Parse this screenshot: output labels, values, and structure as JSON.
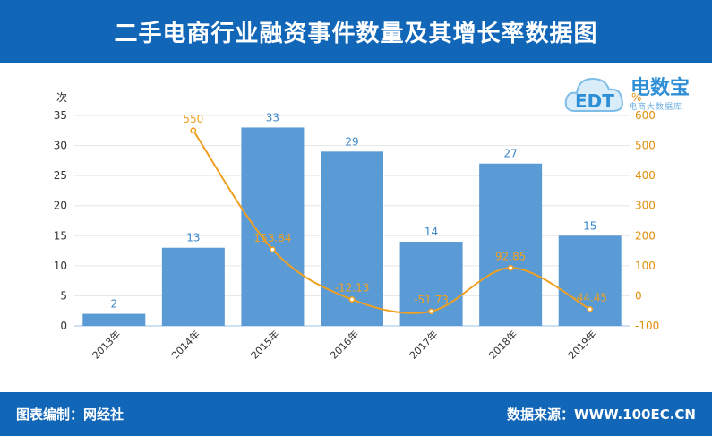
{
  "header": {
    "title": "二手电商行业融资事件数量及其增长率数据图"
  },
  "footer": {
    "left": "图表编制：网经社",
    "right": "数据来源：WWW.100EC.CN"
  },
  "logo": {
    "main": "电数宝",
    "sub": "电商大数据库",
    "mark": "EDT"
  },
  "colors": {
    "header": "#1166b8",
    "bar": "#5b9bd5",
    "line": "#f0a020",
    "right_axis": "#e08e0b"
  },
  "chart_data": {
    "type": "bar",
    "categories": [
      "2013年",
      "2014年",
      "2015年",
      "2016年",
      "2017年",
      "2018年",
      "2019年"
    ],
    "series": [
      {
        "values": [
          2,
          13,
          33,
          29,
          14,
          27,
          15
        ],
        "axis": "left",
        "kind": "bar"
      },
      {
        "values": [
          null,
          550,
          153.84,
          -12.13,
          -51.73,
          92.85,
          -44.45
        ],
        "axis": "right",
        "kind": "line"
      }
    ],
    "ylabel": "次",
    "y2label": "%",
    "ylim": [
      0,
      35
    ],
    "y2lim": [
      -100,
      600
    ],
    "yticks": [
      0,
      5,
      10,
      15,
      20,
      25,
      30,
      35
    ],
    "y2ticks": [
      -100,
      0,
      100,
      200,
      300,
      400,
      500,
      600
    ],
    "bar_labels": [
      "2",
      "13",
      "33",
      "29",
      "14",
      "27",
      "15"
    ],
    "line_labels": [
      "",
      "550",
      "153.84",
      "-12.13",
      "-51.73",
      "92.85",
      "-44.45"
    ],
    "grid": true,
    "legend": "none"
  }
}
